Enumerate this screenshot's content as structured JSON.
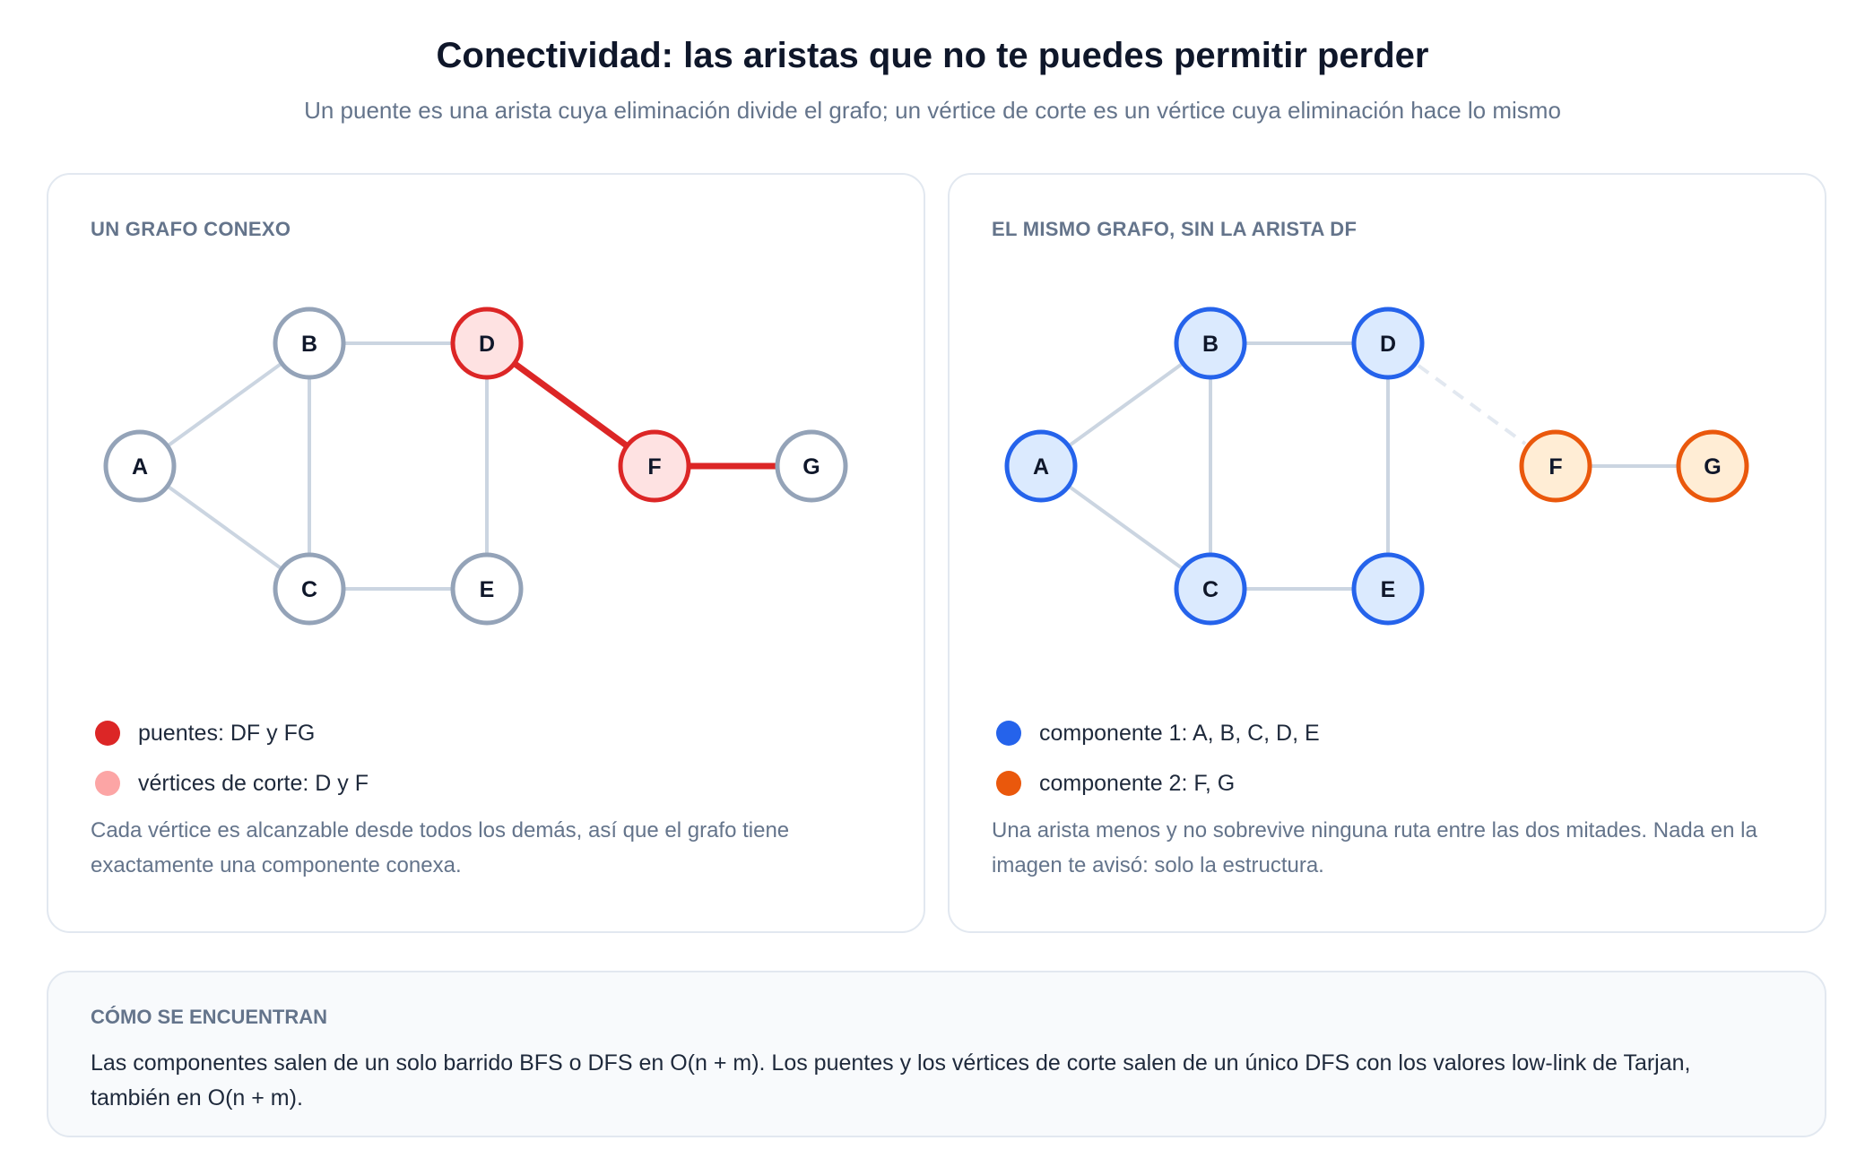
{
  "header": {
    "title": "Conectividad: las aristas que no te puedes permitir perder",
    "subtitle": "Un puente es una arista cuya eliminación divide el grafo; un vértice de corte es un vértice cuya eliminación hace lo mismo"
  },
  "colors": {
    "edge_gray": "#cbd5e1",
    "node_gray_stroke": "#94a3b8",
    "bridge_red": "#dc2626",
    "cut_vertex_fill": "#fee2e2",
    "cut_vertex_dot": "#fca5a5",
    "component1_blue": "#2563eb",
    "component1_fill": "#dbeafe",
    "component2_orange": "#ea580c",
    "component2_fill": "#ffedd5"
  },
  "panels": {
    "left": {
      "heading": "UN GRAFO CONEXO",
      "nodes": [
        "A",
        "B",
        "C",
        "D",
        "E",
        "F",
        "G"
      ],
      "edges": [
        [
          "A",
          "B"
        ],
        [
          "A",
          "C"
        ],
        [
          "B",
          "C"
        ],
        [
          "B",
          "D"
        ],
        [
          "C",
          "E"
        ],
        [
          "D",
          "E"
        ],
        [
          "D",
          "F"
        ],
        [
          "F",
          "G"
        ]
      ],
      "bridges": [
        [
          "D",
          "F"
        ],
        [
          "F",
          "G"
        ]
      ],
      "cut_vertices": [
        "D",
        "F"
      ],
      "legend": [
        {
          "label": "puentes: DF y FG",
          "color": "#dc2626"
        },
        {
          "label": "vértices de corte: D y F",
          "color": "#fca5a5"
        }
      ],
      "caption": "Cada vértice es alcanzable desde todos los demás, así que el grafo tiene exactamente una componente conexa."
    },
    "right": {
      "heading": "EL MISMO GRAFO, SIN LA ARISTA DF",
      "nodes": [
        "A",
        "B",
        "C",
        "D",
        "E",
        "F",
        "G"
      ],
      "edges": [
        [
          "A",
          "B"
        ],
        [
          "A",
          "C"
        ],
        [
          "B",
          "C"
        ],
        [
          "B",
          "D"
        ],
        [
          "C",
          "E"
        ],
        [
          "D",
          "E"
        ],
        [
          "F",
          "G"
        ]
      ],
      "removed_edge": [
        "D",
        "F"
      ],
      "components": [
        [
          "A",
          "B",
          "C",
          "D",
          "E"
        ],
        [
          "F",
          "G"
        ]
      ],
      "legend": [
        {
          "label": "componente 1: A, B, C, D, E",
          "color": "#2563eb"
        },
        {
          "label": "componente 2: F, G",
          "color": "#ea580c"
        }
      ],
      "caption": "Una arista menos y no sobrevive ninguna ruta entre las dos mitades. Nada en la imagen te avisó: solo la estructura."
    }
  },
  "footer": {
    "heading": "CÓMO SE ENCUENTRAN",
    "body": "Las componentes salen de un solo barrido BFS o DFS en O(n + m). Los puentes y los vértices de corte salen de un único DFS con los valores low-link de Tarjan, también en O(n + m)."
  }
}
